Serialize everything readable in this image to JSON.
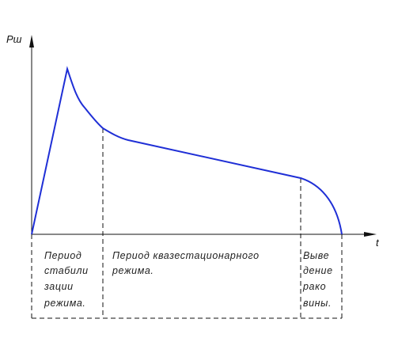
{
  "diagram": {
    "y_axis_label": "Pш",
    "x_axis_label": "t",
    "curve_color": "#1f2fd6",
    "axis_color": "#111111",
    "periods": [
      {
        "lines": [
          "Период",
          "стабили",
          "зации",
          "режима."
        ]
      },
      {
        "lines": [
          "Период квазестационарного",
          "режима."
        ]
      },
      {
        "lines": [
          "Выве",
          "дение",
          "рако",
          "вины."
        ]
      }
    ]
  }
}
